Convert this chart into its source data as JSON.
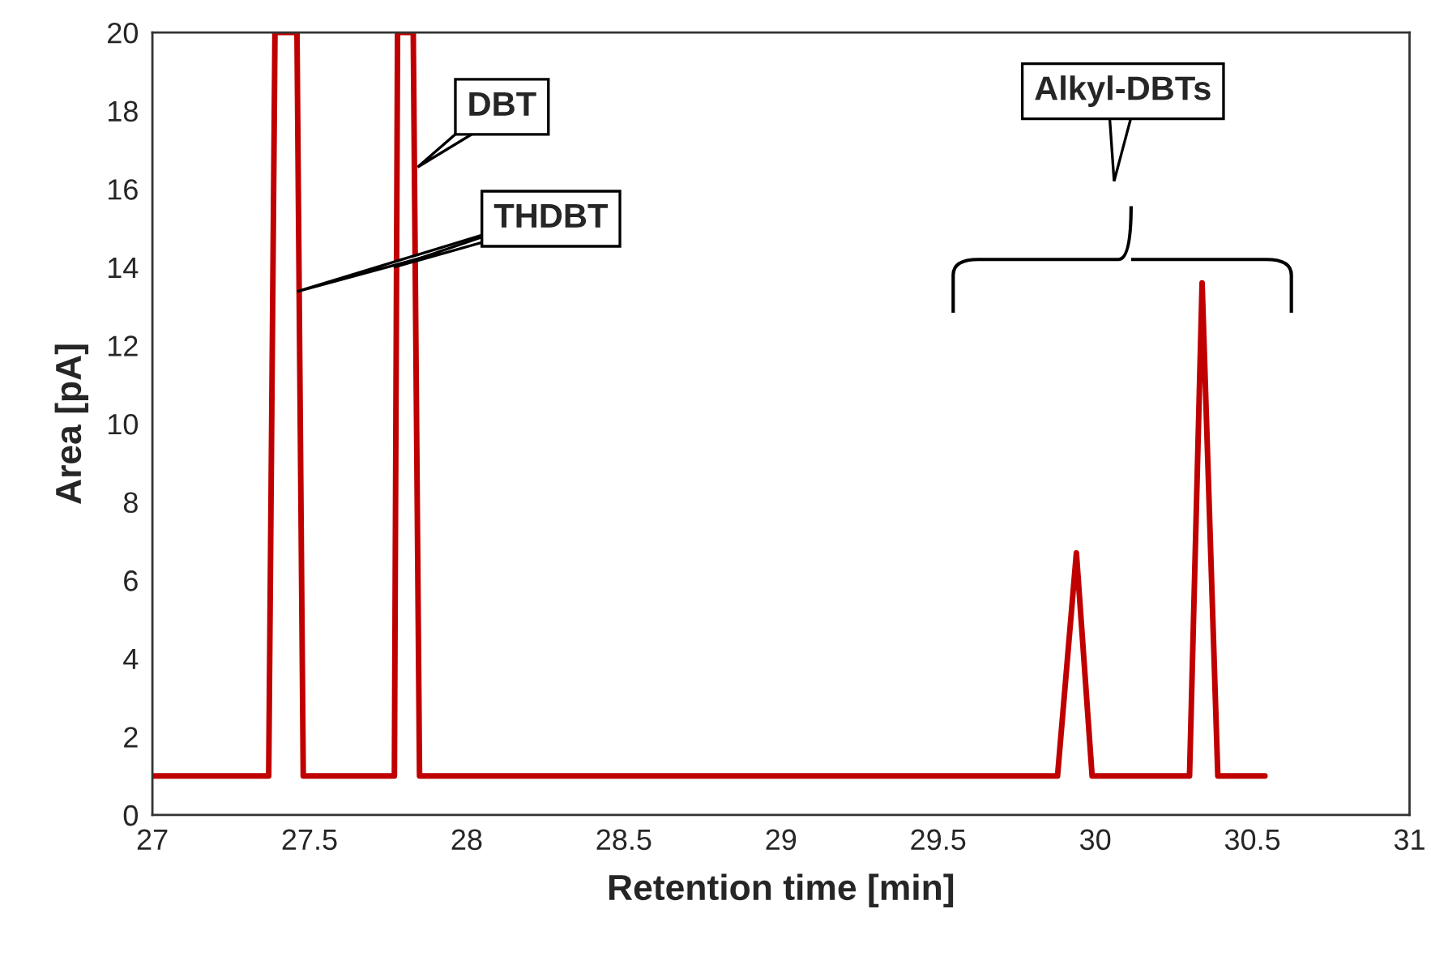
{
  "chart_data": {
    "type": "line",
    "xlabel": "Retention time [min]",
    "ylabel": "Area [pA]",
    "series": [
      {
        "color": "#c00000",
        "x": [
          27.0,
          27.37,
          27.39,
          27.46,
          27.48,
          27.77,
          27.78,
          27.83,
          27.85,
          29.88,
          29.94,
          29.99,
          30.3,
          30.34,
          30.39,
          30.54
        ],
        "values": [
          1,
          1,
          20,
          20,
          1,
          1,
          20,
          20,
          1,
          1,
          6.7,
          1,
          1,
          13.6,
          1,
          1
        ]
      }
    ],
    "xlim": [
      27,
      31
    ],
    "xticks": [
      27,
      27.5,
      28,
      28.5,
      29,
      29.5,
      30,
      30.5,
      31
    ],
    "ylim": [
      0,
      20
    ],
    "yticks": [
      0,
      2,
      4,
      6,
      8,
      10,
      12,
      14,
      16,
      18,
      20
    ],
    "grid": false,
    "legend": false,
    "line_style": "solid",
    "marker": "none",
    "annotations": [
      "DBT",
      "THDBT",
      "Alkyl-DBTs"
    ]
  }
}
